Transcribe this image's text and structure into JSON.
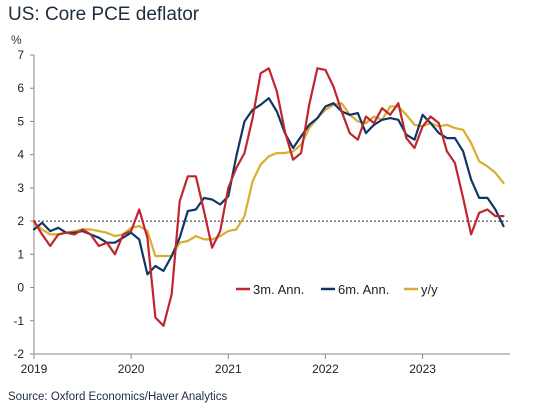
{
  "title": "US: Core PCE deflator",
  "source": "Source: Oxford Economics/Haver Analytics",
  "chart_data": {
    "type": "line",
    "title": "US: Core PCE deflator",
    "ylabel": "%",
    "xlabel": "",
    "ylim": [
      -2,
      7
    ],
    "yticks": [
      -2,
      -1,
      0,
      1,
      2,
      3,
      4,
      5,
      6,
      7
    ],
    "xlim": [
      2019.0,
      2023.9
    ],
    "xticks": [
      "2019",
      "2020",
      "2021",
      "2022",
      "2023"
    ],
    "reference_line": {
      "y": 2,
      "style": "dotted"
    },
    "legend_position": "lower-center",
    "grid": false,
    "x": [
      2019.0,
      2019.083,
      2019.167,
      2019.25,
      2019.333,
      2019.417,
      2019.5,
      2019.583,
      2019.667,
      2019.75,
      2019.833,
      2019.917,
      2020.0,
      2020.083,
      2020.167,
      2020.25,
      2020.333,
      2020.417,
      2020.5,
      2020.583,
      2020.667,
      2020.75,
      2020.833,
      2020.917,
      2021.0,
      2021.083,
      2021.167,
      2021.25,
      2021.333,
      2021.417,
      2021.5,
      2021.583,
      2021.667,
      2021.75,
      2021.833,
      2021.917,
      2022.0,
      2022.083,
      2022.167,
      2022.25,
      2022.333,
      2022.417,
      2022.5,
      2022.583,
      2022.667,
      2022.75,
      2022.833,
      2022.917,
      2023.0,
      2023.083,
      2023.167,
      2023.25,
      2023.333,
      2023.417,
      2023.5,
      2023.583,
      2023.667,
      2023.75,
      2023.833
    ],
    "series": [
      {
        "name": "3m. Ann.",
        "color": "#c0262d",
        "values": [
          2.0,
          1.6,
          1.25,
          1.6,
          1.65,
          1.6,
          1.75,
          1.6,
          1.25,
          1.35,
          1.0,
          1.6,
          1.7,
          2.35,
          1.5,
          -0.9,
          -1.15,
          -0.2,
          2.6,
          3.35,
          3.35,
          2.3,
          1.2,
          1.7,
          3.0,
          3.6,
          4.05,
          5.1,
          6.45,
          6.6,
          5.9,
          4.7,
          3.85,
          4.05,
          5.5,
          6.6,
          6.55,
          6.05,
          5.3,
          4.65,
          4.45,
          5.15,
          4.95,
          5.4,
          5.2,
          5.55,
          4.5,
          4.2,
          4.85,
          5.15,
          4.95,
          4.1,
          3.75,
          2.7,
          1.6,
          2.25,
          2.35,
          2.15,
          2.15
        ]
      },
      {
        "name": "6m. Ann.",
        "color": "#0e3766",
        "values": [
          1.75,
          1.95,
          1.7,
          1.8,
          1.65,
          1.65,
          1.7,
          1.6,
          1.5,
          1.35,
          1.35,
          1.5,
          1.65,
          1.45,
          0.4,
          0.65,
          0.5,
          0.95,
          1.5,
          2.3,
          2.35,
          2.7,
          2.65,
          2.5,
          2.75,
          3.95,
          5.0,
          5.35,
          5.5,
          5.7,
          5.3,
          4.65,
          4.2,
          4.55,
          4.9,
          5.1,
          5.45,
          5.55,
          5.3,
          5.2,
          5.25,
          4.65,
          4.9,
          5.05,
          5.1,
          5.05,
          4.6,
          4.45,
          5.2,
          4.95,
          4.65,
          4.5,
          4.5,
          4.1,
          3.25,
          2.7,
          2.7,
          2.35,
          1.85
        ]
      },
      {
        "name": "y/y",
        "color": "#d9ad2e",
        "values": [
          1.95,
          1.75,
          1.6,
          1.6,
          1.65,
          1.7,
          1.75,
          1.75,
          1.7,
          1.65,
          1.55,
          1.6,
          1.8,
          1.85,
          1.7,
          0.95,
          0.95,
          0.95,
          1.35,
          1.4,
          1.55,
          1.45,
          1.45,
          1.55,
          1.7,
          1.75,
          2.15,
          3.2,
          3.7,
          3.95,
          4.05,
          4.05,
          4.1,
          4.3,
          4.8,
          5.1,
          5.35,
          5.5,
          5.55,
          5.2,
          5.0,
          4.95,
          5.15,
          5.05,
          5.45,
          5.45,
          5.2,
          4.9,
          4.85,
          4.95,
          4.85,
          4.9,
          4.8,
          4.75,
          4.35,
          3.8,
          3.65,
          3.45,
          3.15
        ]
      }
    ]
  }
}
